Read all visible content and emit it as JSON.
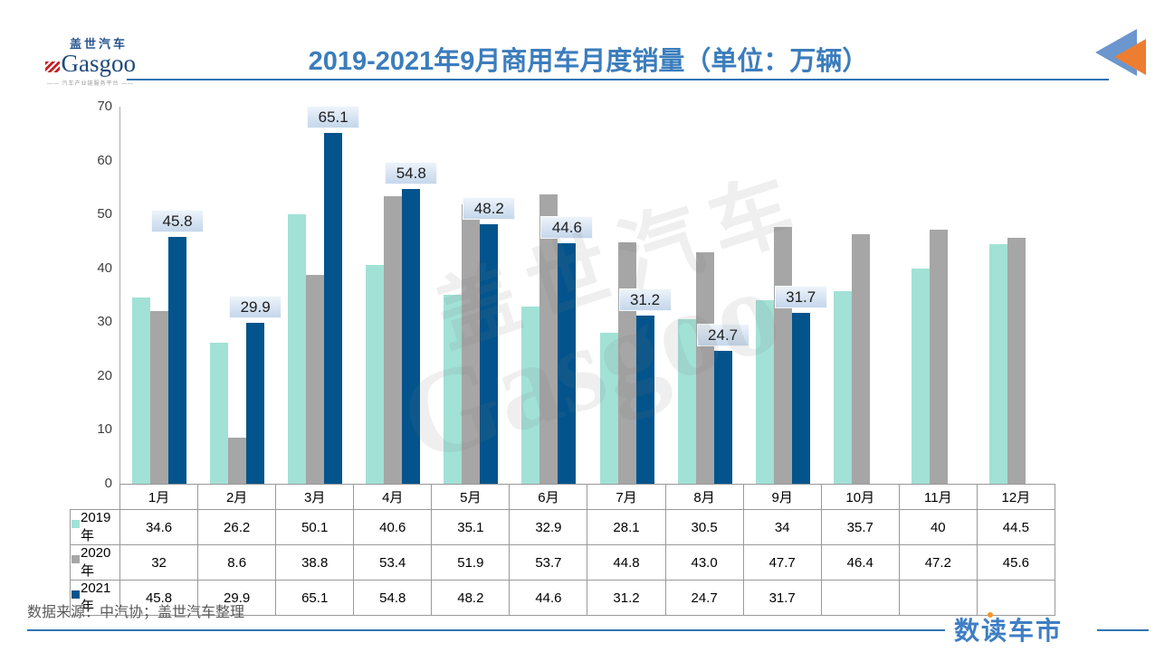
{
  "header": {
    "logo": {
      "cn": "盖世汽车",
      "en": "Gasgoo",
      "tagline": "—— 汽车产业链服务平台 ——"
    },
    "title": "2019-2021年9月商用车月度销量（单位：万辆）"
  },
  "chart_data": {
    "type": "bar",
    "title": "2019-2021年9月商用车月度销量",
    "unit": "万辆",
    "categories": [
      "1月",
      "2月",
      "3月",
      "4月",
      "5月",
      "6月",
      "7月",
      "8月",
      "9月",
      "10月",
      "11月",
      "12月"
    ],
    "series": [
      {
        "name": "2019年",
        "color": "#a2e1d6",
        "values": [
          34.6,
          26.2,
          50.1,
          40.6,
          35.1,
          32.9,
          28.1,
          30.5,
          34,
          35.7,
          40,
          44.5
        ],
        "display": [
          "34.6",
          "26.2",
          "50.1",
          "40.6",
          "35.1",
          "32.9",
          "28.1",
          "30.5",
          "34",
          "35.7",
          "40",
          "44.5"
        ],
        "data_labels": false
      },
      {
        "name": "2020年",
        "color": "#a6a6a6",
        "values": [
          32,
          8.6,
          38.8,
          53.4,
          51.9,
          53.7,
          44.8,
          43.0,
          47.7,
          46.4,
          47.2,
          45.6
        ],
        "display": [
          "32",
          "8.6",
          "38.8",
          "53.4",
          "51.9",
          "53.7",
          "44.8",
          "43.0",
          "47.7",
          "46.4",
          "47.2",
          "45.6"
        ],
        "data_labels": false
      },
      {
        "name": "2021年",
        "color": "#03548c",
        "values": [
          45.8,
          29.9,
          65.1,
          54.8,
          48.2,
          44.6,
          31.2,
          24.7,
          31.7,
          null,
          null,
          null
        ],
        "display": [
          "45.8",
          "29.9",
          "65.1",
          "54.8",
          "48.2",
          "44.6",
          "31.2",
          "24.7",
          "31.7",
          "",
          "",
          ""
        ],
        "data_labels": true
      }
    ],
    "ylim": [
      0,
      70
    ],
    "yticks": [
      0,
      10,
      20,
      30,
      40,
      50,
      60,
      70
    ],
    "grid": false,
    "legend_position": "data-table-left",
    "data_label_style": {
      "background": "#d6e3f2",
      "text_color": "#1c1c1c"
    }
  },
  "watermark": {
    "cn": "盖世汽车",
    "en": "Gasgoo"
  },
  "footer": {
    "source": "数据来源：中汽协；盖世汽车整理",
    "brand": "数读车市"
  },
  "colors": {
    "title_blue": "#3b7dbd",
    "rule_blue": "#2e75b6",
    "arrow_blue": "#6b96ce",
    "arrow_orange": "#ed7d31"
  }
}
